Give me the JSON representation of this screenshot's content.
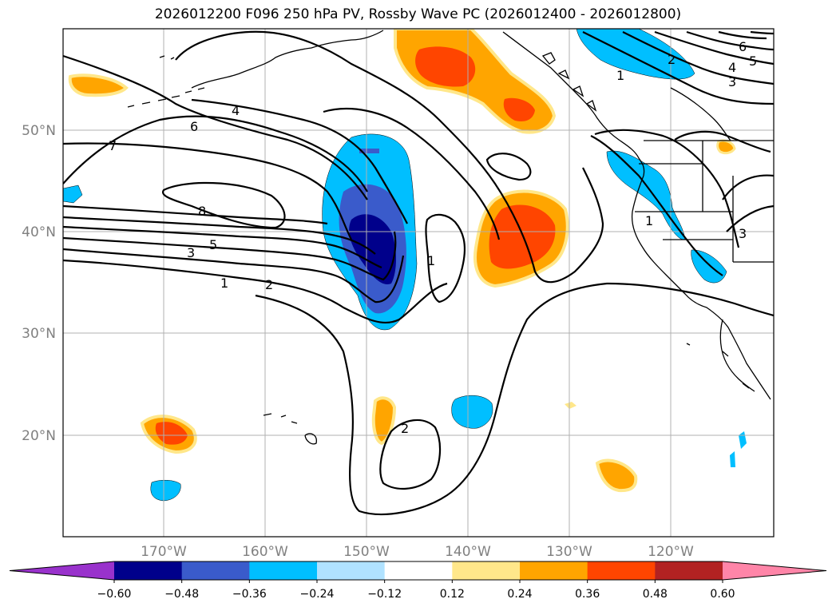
{
  "title": "2026012200 F096 250 hPa PV, Rossby Wave PC (2026012400 - 2026012800)",
  "latitude_labels": [
    "50°N",
    "40°N",
    "30°N",
    "20°N"
  ],
  "longitude_labels": [
    "170°W",
    "160°W",
    "150°W",
    "140°W",
    "130°W",
    "120°W"
  ],
  "colorbar": {
    "tick_labels": [
      "−0.60",
      "−0.48",
      "−0.36",
      "−0.24",
      "−0.12",
      "0.12",
      "0.24",
      "0.36",
      "0.48",
      "0.60"
    ],
    "colors": [
      "#9932cc",
      "#00008b",
      "#3a5bcb",
      "#00bfff",
      "#b0e2ff",
      "#ffffff",
      "#ffe78a",
      "#ffa500",
      "#ff4500",
      "#b22222",
      "#ff85a8"
    ]
  },
  "contour_labels": {
    "c1": "1",
    "c2": "2",
    "c3": "3",
    "c4": "4",
    "c5": "5",
    "c6": "6",
    "c7": "7",
    "c8": "8"
  }
}
